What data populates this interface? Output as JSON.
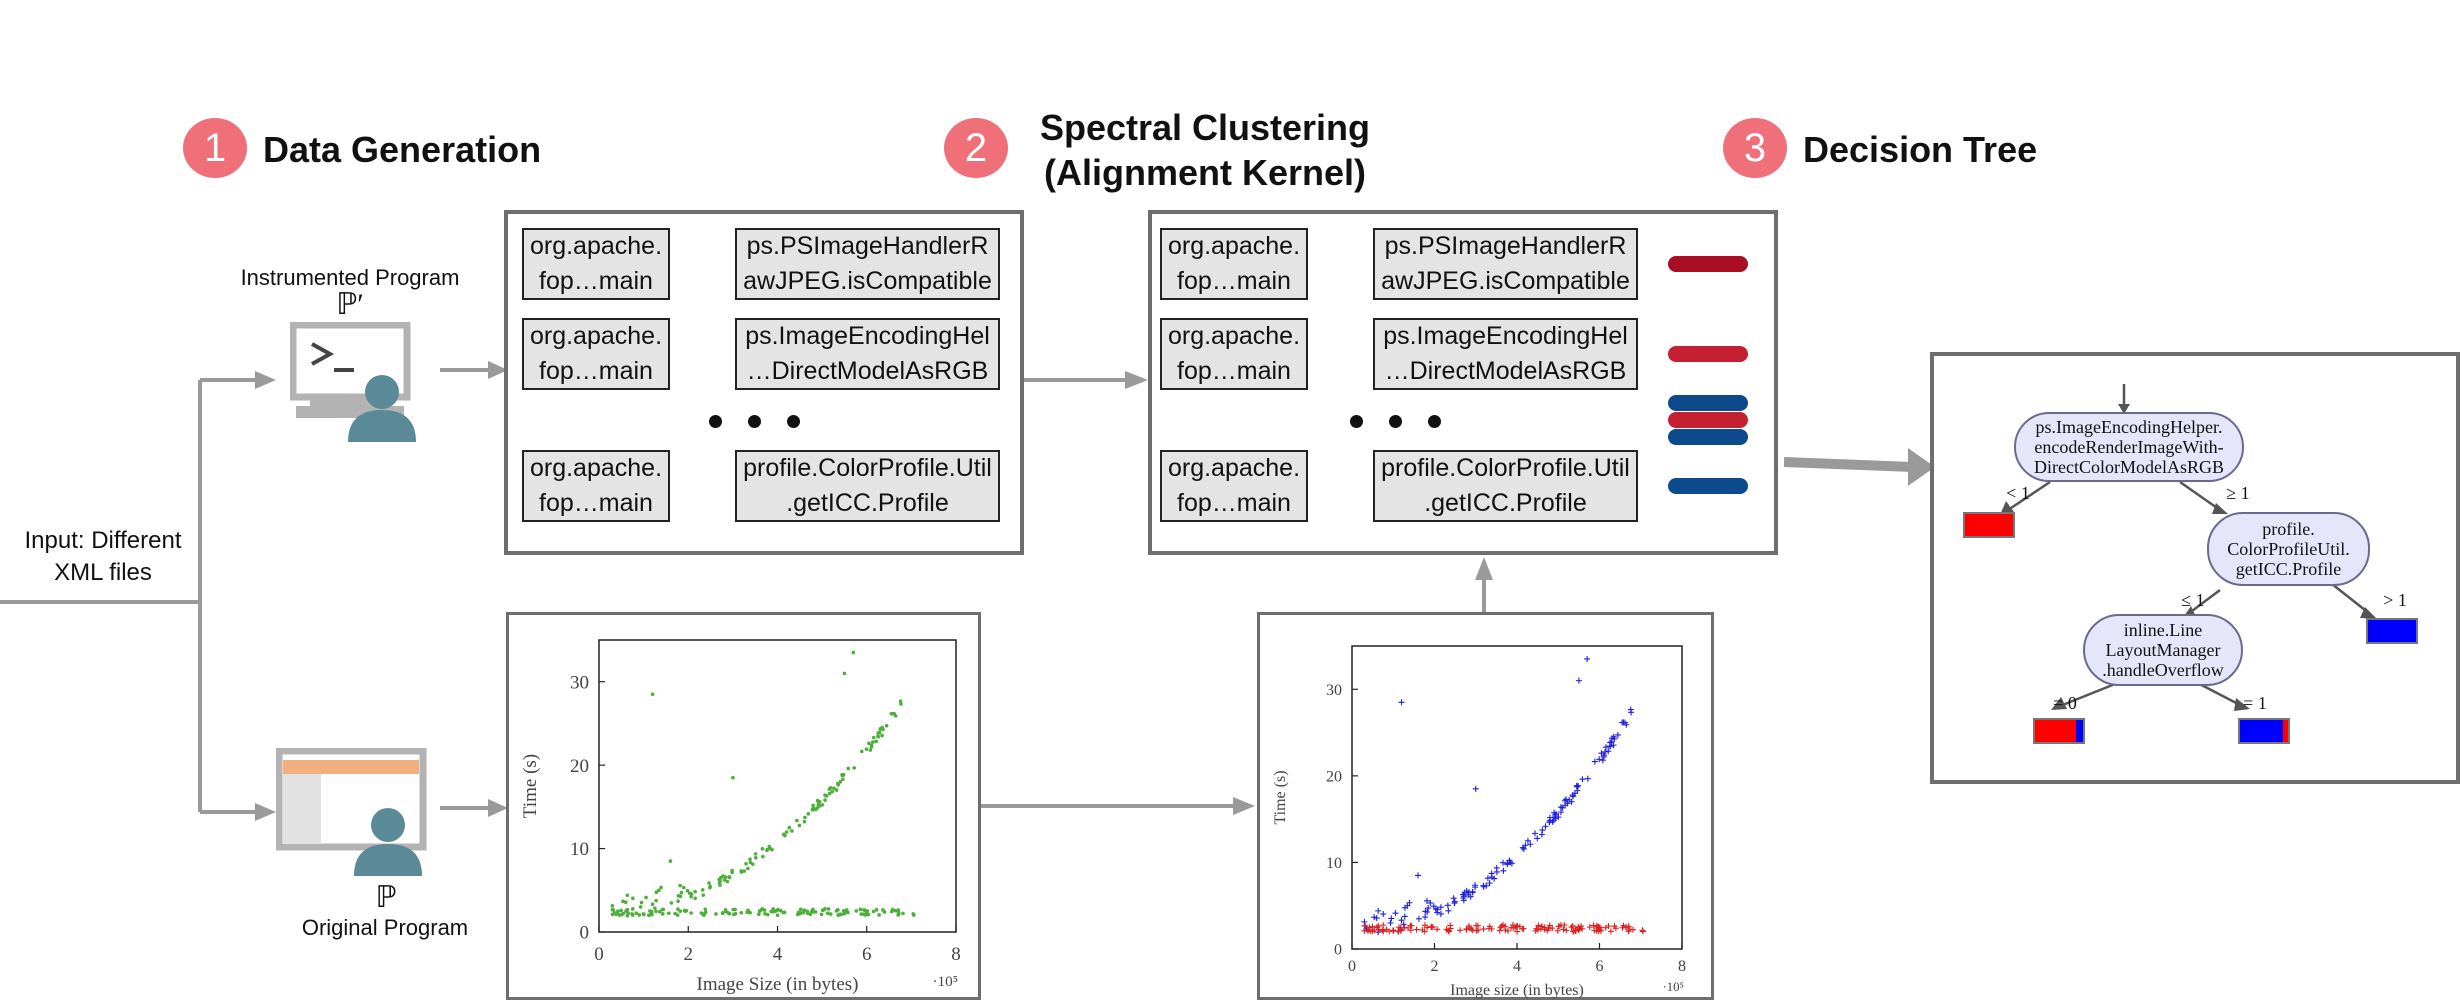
{
  "steps": [
    {
      "num": "1",
      "title": "Data Generation"
    },
    {
      "num": "2",
      "title_lines": [
        "Spectral Clustering",
        "(Alignment Kernel)"
      ]
    },
    {
      "num": "3",
      "title": "Decision Tree"
    }
  ],
  "input_label": [
    "Input: Different",
    "XML files"
  ],
  "instrumented": {
    "caption": "Instrumented Program",
    "symbol": "ℙ′"
  },
  "original": {
    "caption": "Original Program",
    "symbol": "ℙ"
  },
  "trace_rows": [
    {
      "left": [
        "org.apache.",
        "fop…main"
      ],
      "right": [
        "ps.PSImageHandlerR",
        "awJPEG.isCompatible"
      ]
    },
    {
      "left": [
        "org.apache.",
        "fop…main"
      ],
      "right": [
        "ps.ImageEncodingHel",
        "…DirectModelAsRGB"
      ]
    },
    {
      "left": [
        "org.apache.",
        "fop…main"
      ],
      "right": [
        "profile.ColorProfile.Util",
        ".getICC.Profile"
      ]
    }
  ],
  "cluster_bar_colors": {
    "dark_red": "#a80f25",
    "red": "#c42032",
    "blue": "#0d4a8c"
  },
  "chart_data": [
    {
      "type": "scatter",
      "xlabel": "Image Size (in bytes)",
      "ylabel": "Time (s)",
      "x_multiplier": "·10⁵",
      "xlim": [
        0,
        8
      ],
      "ylim": [
        0,
        35
      ],
      "xticks": [
        "0",
        "2",
        "4",
        "6",
        "8"
      ],
      "yticks": [
        "0",
        "10",
        "20",
        "30"
      ],
      "series": [
        {
          "color": "#4caf3a",
          "marker": "dot"
        }
      ]
    },
    {
      "type": "scatter",
      "xlabel": "Image size (in bytes)",
      "ylabel": "Time (s)",
      "x_multiplier": "·10⁵",
      "xlim": [
        0,
        8
      ],
      "ylim": [
        0,
        35
      ],
      "xticks": [
        "0",
        "2",
        "4",
        "6",
        "8"
      ],
      "yticks": [
        "0",
        "10",
        "20",
        "30"
      ],
      "series": [
        {
          "color": "#1f1fe0",
          "marker": "plus"
        },
        {
          "color": "#e01f1f",
          "marker": "plus"
        }
      ]
    }
  ],
  "tree": {
    "root": [
      "ps.ImageEncodingHelper.",
      "encodeRenderImageWith-",
      "DirectColorModelAsRGB"
    ],
    "node2": [
      "profile.",
      "ColorProfileUtil.",
      "getICC.Profile"
    ],
    "node3": [
      "inline.Line",
      "LayoutManager",
      ".handleOverflow"
    ],
    "edges": {
      "lt1": "< 1",
      "ge1": "≥ 1",
      "le1": "≤ 1",
      "gt1": "> 1",
      "eq0": "= 0",
      "eq1": "= 1"
    },
    "colors": {
      "red": "#ff0000",
      "blue": "#0000ff"
    }
  }
}
